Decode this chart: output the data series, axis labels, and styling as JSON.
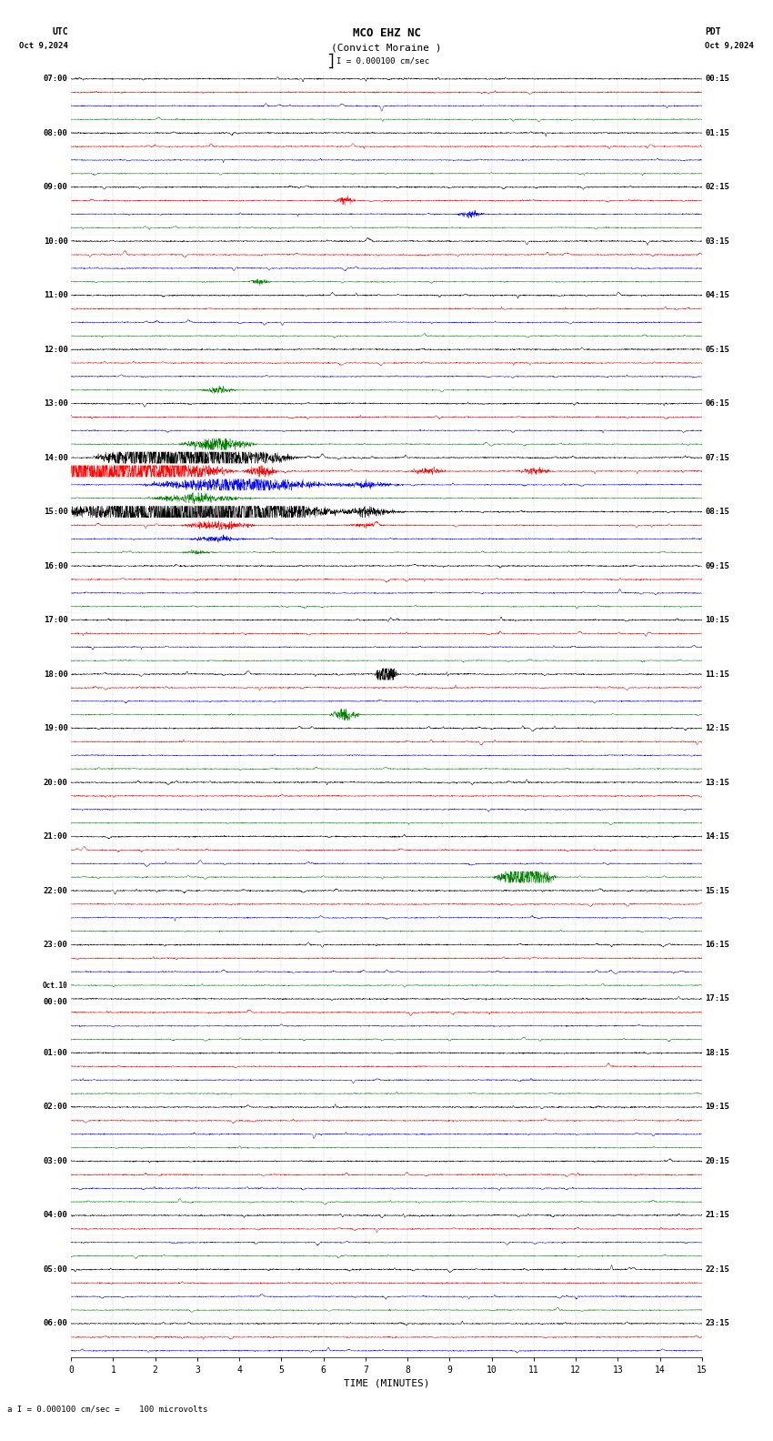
{
  "title_line1": "MCO EHZ NC",
  "title_line2": "(Convict Moraine )",
  "scale_label": "I = 0.000100 cm/sec",
  "utc_label": "UTC",
  "pdt_label": "PDT",
  "date_left": "Oct 9,2024",
  "date_right": "Oct 9,2024",
  "xlabel": "TIME (MINUTES)",
  "footer": "a I = 0.000100 cm/sec =    100 microvolts",
  "xlim": [
    0,
    15
  ],
  "xticks": [
    0,
    1,
    2,
    3,
    4,
    5,
    6,
    7,
    8,
    9,
    10,
    11,
    12,
    13,
    14,
    15
  ],
  "trace_colors_cycle": [
    "black",
    "red",
    "blue",
    "green"
  ],
  "bg_color": "white",
  "num_rows": 95,
  "fig_width": 8.5,
  "fig_height": 15.84,
  "utc_times_labels": [
    "07:00",
    "08:00",
    "09:00",
    "10:00",
    "11:00",
    "12:00",
    "13:00",
    "14:00",
    "15:00",
    "16:00",
    "17:00",
    "18:00",
    "19:00",
    "20:00",
    "21:00",
    "22:00",
    "23:00",
    "Oct.10",
    "01:00",
    "02:00",
    "03:00",
    "04:00",
    "05:00",
    "06:00"
  ],
  "pdt_times_labels": [
    "00:15",
    "01:15",
    "02:15",
    "03:15",
    "04:15",
    "05:15",
    "06:15",
    "07:15",
    "08:15",
    "09:15",
    "10:15",
    "11:15",
    "12:15",
    "13:15",
    "14:15",
    "15:15",
    "16:15",
    "17:15",
    "18:15",
    "19:15",
    "20:15",
    "21:15",
    "22:15",
    "23:15"
  ]
}
